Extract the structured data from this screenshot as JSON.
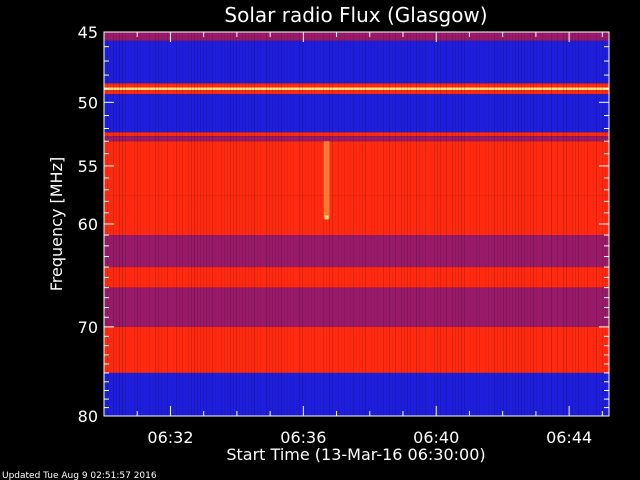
{
  "chart_data": {
    "type": "heatmap",
    "title": "Solar radio Flux (Glasgow)",
    "ylabel": "Frequency [MHz]",
    "xlabel": "Start Time (13-Mar-16 06:30:00)",
    "yscale": "log",
    "ylim": [
      45,
      80
    ],
    "y_major_ticks": [
      45,
      50,
      55,
      60,
      70,
      80
    ],
    "y_tick_labels": [
      "45",
      "50",
      "55",
      "60",
      "70",
      "80"
    ],
    "xlim_minutes": [
      0,
      15.2
    ],
    "x_major_ticks_minutes": [
      2,
      6,
      10,
      14
    ],
    "x_tick_labels": [
      "06:32",
      "06:36",
      "06:40",
      "06:44"
    ],
    "colors": {
      "background": "#000000",
      "low": "#1e1edc",
      "mid": "#9a1a6a",
      "high": "#ff2a10",
      "peak": "#ffe080"
    },
    "bands": [
      {
        "freq_from": 45.0,
        "freq_to": 45.6,
        "level": "mid"
      },
      {
        "freq_from": 45.6,
        "freq_to": 48.6,
        "level": "low"
      },
      {
        "freq_from": 48.6,
        "freq_to": 48.9,
        "level": "high"
      },
      {
        "freq_from": 48.9,
        "freq_to": 49.1,
        "level": "peak"
      },
      {
        "freq_from": 49.1,
        "freq_to": 49.4,
        "level": "high"
      },
      {
        "freq_from": 49.4,
        "freq_to": 52.3,
        "level": "low"
      },
      {
        "freq_from": 52.3,
        "freq_to": 52.6,
        "level": "high"
      },
      {
        "freq_from": 52.6,
        "freq_to": 53.0,
        "level": "mid"
      },
      {
        "freq_from": 53.0,
        "freq_to": 57.5,
        "level": "high"
      },
      {
        "freq_from": 57.5,
        "freq_to": 61.0,
        "level": "high"
      },
      {
        "freq_from": 61.0,
        "freq_to": 64.0,
        "level": "mid"
      },
      {
        "freq_from": 64.0,
        "freq_to": 66.0,
        "level": "high"
      },
      {
        "freq_from": 66.0,
        "freq_to": 70.0,
        "level": "mid"
      },
      {
        "freq_from": 70.0,
        "freq_to": 75.0,
        "level": "high"
      },
      {
        "freq_from": 75.0,
        "freq_to": 80.0,
        "level": "low"
      }
    ],
    "bursts": [
      {
        "time_minutes": 6.7,
        "freq_from": 53.0,
        "freq_to": 59.5
      }
    ]
  },
  "footer": {
    "updated": "Updated Tue Aug  9 02:51:57 2016"
  }
}
